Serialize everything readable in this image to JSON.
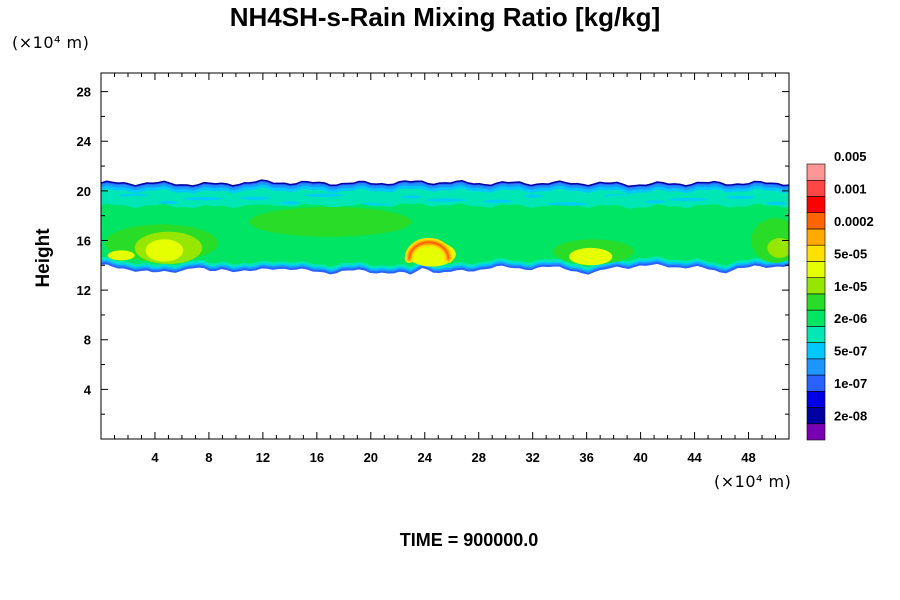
{
  "chart_data": {
    "type": "heatmap",
    "title": "NH4SH-s-Rain Mixing Ratio [kg/kg]",
    "xlabel": "",
    "ylabel": "Height",
    "x_unit": "(×10⁴ m)",
    "y_unit": "(×10⁴ m)",
    "xlim": [
      0,
      51
    ],
    "ylim": [
      0,
      29.5
    ],
    "x_ticks": [
      4,
      8,
      12,
      16,
      20,
      24,
      28,
      32,
      36,
      40,
      44,
      48
    ],
    "y_ticks": [
      4,
      8,
      12,
      16,
      20,
      24,
      28
    ],
    "colorbar": {
      "levels": [
        "2e-08",
        "1e-07",
        "5e-07",
        "2e-06",
        "1e-05",
        "5e-05",
        "0.0002",
        "0.001",
        "0.005"
      ],
      "colors": [
        "#7a00b4",
        "#0000a0",
        "#0000e6",
        "#2a62ff",
        "#1e96ff",
        "#00c8ff",
        "#00e6b4",
        "#00e664",
        "#28dc28",
        "#96e600",
        "#e6ff00",
        "#ffe100",
        "#ffaa00",
        "#ff6400",
        "#ff0000",
        "#ff4646",
        "#ff9696"
      ]
    },
    "field_summary": {
      "layer_bottom": [
        [
          0,
          14.0
        ],
        [
          2,
          13.8
        ],
        [
          4,
          13.4
        ],
        [
          6,
          13.7
        ],
        [
          7,
          13.9
        ],
        [
          8,
          13.5
        ],
        [
          9,
          13.8
        ],
        [
          11,
          13.5
        ],
        [
          13,
          13.9
        ],
        [
          15,
          13.6
        ],
        [
          17,
          13.5
        ],
        [
          19,
          13.6
        ],
        [
          21,
          13.5
        ],
        [
          23,
          13.3
        ],
        [
          24,
          14.0
        ],
        [
          25,
          13.4
        ],
        [
          27,
          13.6
        ],
        [
          29,
          13.9
        ],
        [
          31,
          13.8
        ],
        [
          33,
          13.9
        ],
        [
          35,
          13.7
        ],
        [
          36,
          13.4
        ],
        [
          37,
          13.5
        ],
        [
          38,
          13.9
        ],
        [
          40,
          14.0
        ],
        [
          42,
          14.0
        ],
        [
          44,
          13.9
        ],
        [
          46,
          13.5
        ],
        [
          47,
          13.8
        ],
        [
          49,
          13.9
        ],
        [
          51,
          14.1
        ]
      ],
      "layer_top": [
        [
          0,
          20.6
        ],
        [
          4,
          20.6
        ],
        [
          8,
          20.5
        ],
        [
          12,
          20.7
        ],
        [
          16,
          20.6
        ],
        [
          20,
          20.6
        ],
        [
          24,
          20.7
        ],
        [
          28,
          20.6
        ],
        [
          32,
          20.6
        ],
        [
          36,
          20.6
        ],
        [
          40,
          20.5
        ],
        [
          44,
          20.6
        ],
        [
          48,
          20.6
        ],
        [
          51,
          20.6
        ]
      ],
      "peak_regions": [
        {
          "x_center": 5.0,
          "y_center": 15.6,
          "max_level": "0.0002"
        },
        {
          "x_center": 24.3,
          "y_center": 15.3,
          "max_level": "0.001"
        },
        {
          "x_center": 36.3,
          "y_center": 14.8,
          "max_level": "0.0002"
        },
        {
          "x_center": 50.0,
          "y_center": 16.0,
          "max_level": "5e-05"
        }
      ]
    }
  },
  "footer": {
    "time_label": "TIME = 900000.0"
  }
}
